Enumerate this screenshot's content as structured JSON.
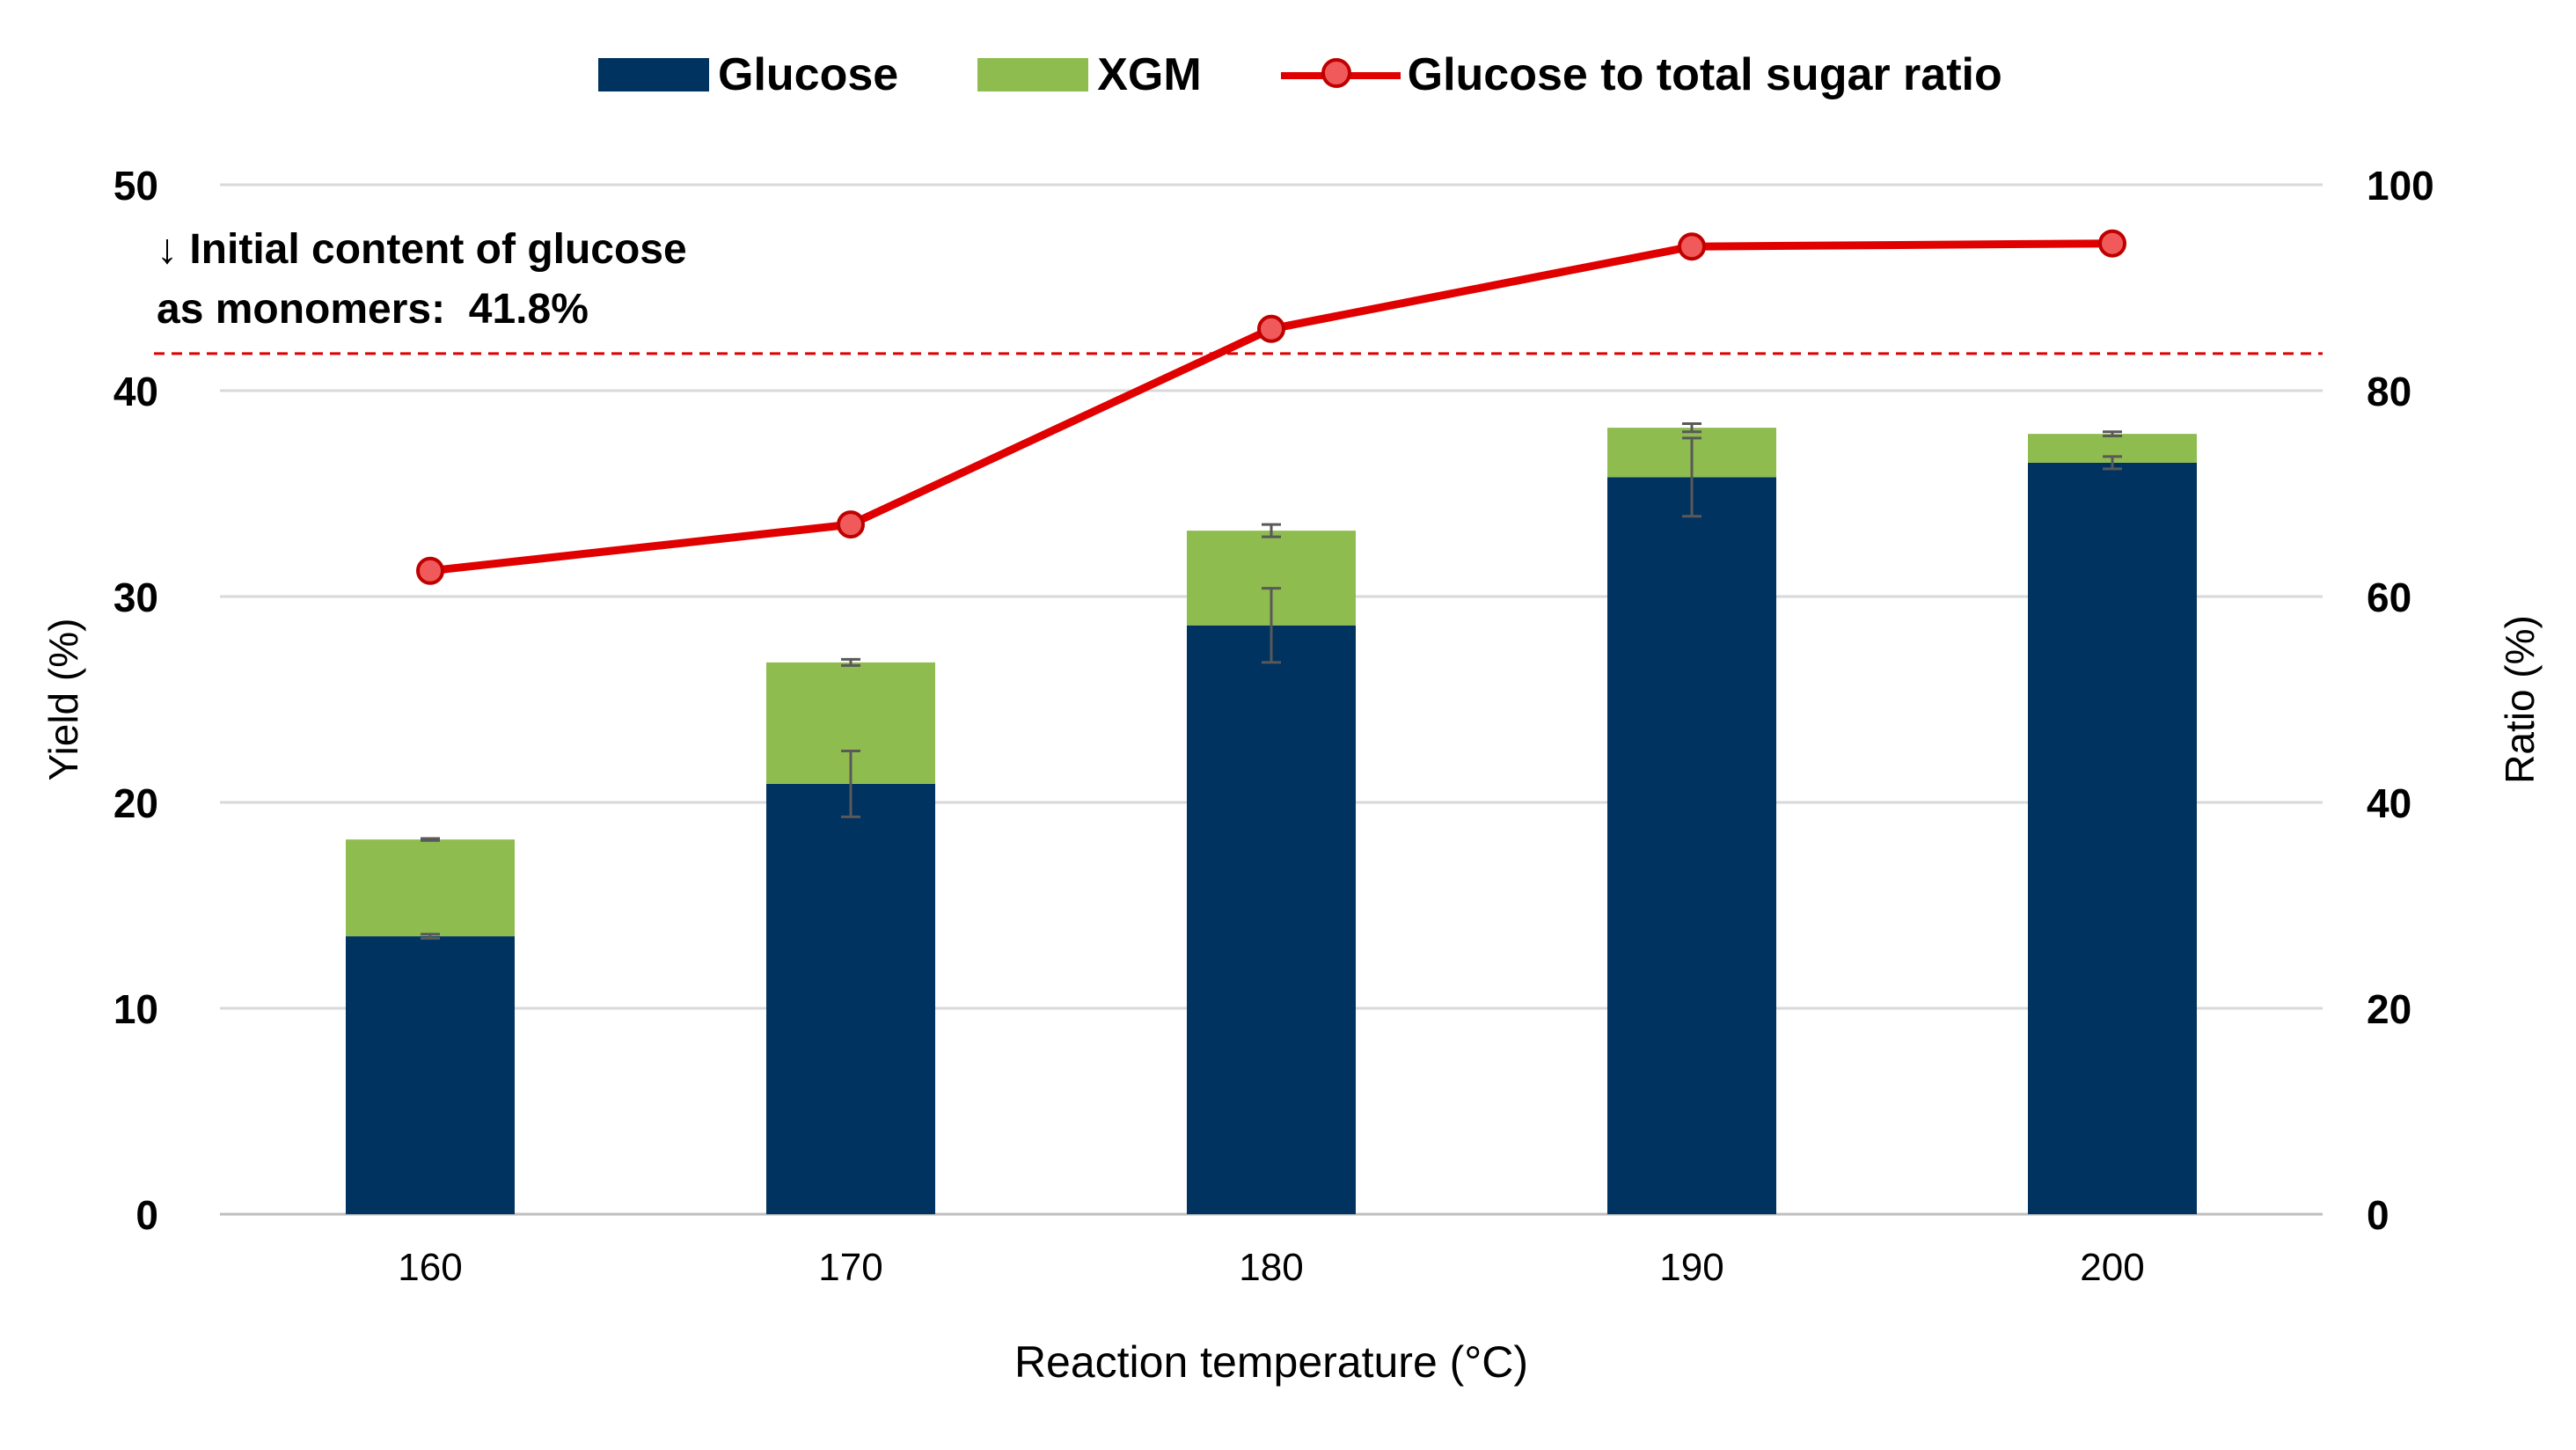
{
  "chart_data": {
    "type": "bar",
    "stacked": true,
    "categories": [
      "160",
      "170",
      "180",
      "190",
      "200"
    ],
    "series": [
      {
        "name": "Glucose",
        "values": [
          13.5,
          20.9,
          28.6,
          35.8,
          36.5
        ],
        "errors": [
          0.1,
          1.6,
          1.8,
          1.9,
          0.3
        ],
        "color": "#003360",
        "axis": "left"
      },
      {
        "name": "XGM",
        "values": [
          4.7,
          5.9,
          4.6,
          2.4,
          1.4
        ],
        "errors": [
          0.05,
          0.15,
          0.3,
          0.2,
          0.1
        ],
        "color": "#8fbc4f",
        "axis": "left"
      },
      {
        "name": "Glucose to total sugar ratio",
        "type": "line",
        "values": [
          62.5,
          67.0,
          86.0,
          94.0,
          94.3
        ],
        "color": "#e00000",
        "axis": "right"
      }
    ],
    "xlabel": "Reaction temperature (°C)",
    "ylabel": "Yield (%)",
    "y2label": "Ratio (%)",
    "ylim": [
      0,
      50
    ],
    "y2lim": [
      0,
      100
    ],
    "yticks": [
      0,
      10,
      20,
      30,
      40,
      50
    ],
    "y2ticks": [
      0,
      20,
      40,
      60,
      80,
      100
    ],
    "grid": true,
    "legend_position": "top",
    "reference_line": {
      "value": 41.8,
      "axis": "left",
      "style": "dashed",
      "color": "#e00000"
    },
    "annotation": {
      "line1": "↓ Initial content of glucose",
      "line2": "as monomers:  41.8%"
    }
  }
}
